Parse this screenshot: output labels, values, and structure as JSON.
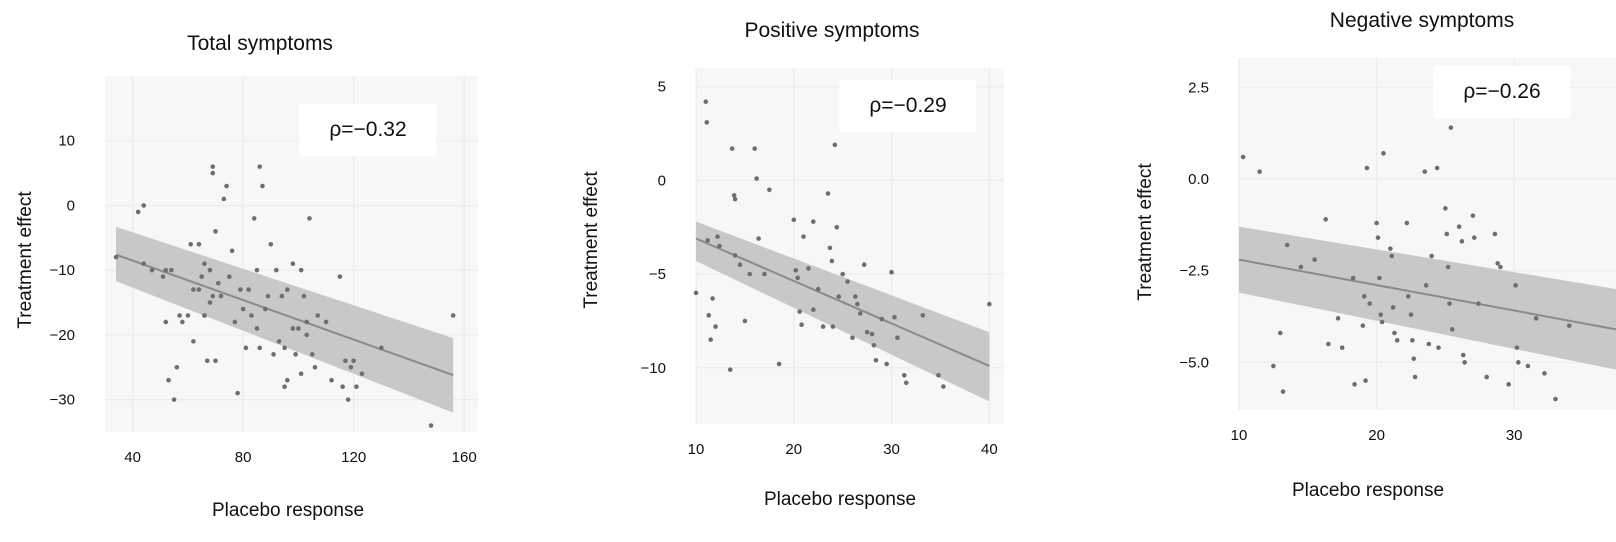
{
  "colors": {
    "band": "#c8c8c8",
    "line": "#8a8a8a",
    "point": "#6e6e6e",
    "grid": "#ececec",
    "plot_bg": "#f7f7f7"
  },
  "chart_data": [
    {
      "type": "scatter",
      "title": "Total symptoms",
      "xlabel": "Placebo response",
      "ylabel": "Treatment effect",
      "annotation": "ρ=−0.32",
      "xlim": [
        30,
        165
      ],
      "ylim": [
        -35,
        20
      ],
      "xticks": [
        40,
        80,
        120,
        160
      ],
      "xtick_labels": [
        "40",
        "80",
        "120",
        "160"
      ],
      "yticks": [
        10,
        0,
        -10,
        -20,
        -30
      ],
      "ytick_labels": [
        "10",
        "0",
        "−10",
        "−20",
        "−30"
      ],
      "grid": true,
      "trend": {
        "x": [
          34,
          156
        ],
        "y": [
          -7.6,
          -26.2
        ]
      },
      "band": {
        "x": [
          34,
          156
        ],
        "upper": [
          -3.3,
          -20.5
        ],
        "lower": [
          -11.7,
          -32.0
        ]
      },
      "points": [
        [
          34,
          -8
        ],
        [
          42,
          -1
        ],
        [
          44,
          0
        ],
        [
          44,
          -9
        ],
        [
          47,
          -10
        ],
        [
          51,
          -11
        ],
        [
          52,
          -10
        ],
        [
          52,
          -18
        ],
        [
          53,
          -27
        ],
        [
          54,
          -10
        ],
        [
          55,
          -30
        ],
        [
          56,
          -25
        ],
        [
          57,
          -17
        ],
        [
          58,
          -18
        ],
        [
          60,
          -17
        ],
        [
          61,
          -6
        ],
        [
          62,
          -21
        ],
        [
          62,
          -13
        ],
        [
          64,
          -13
        ],
        [
          64,
          -6
        ],
        [
          65,
          -11
        ],
        [
          66,
          -17
        ],
        [
          66,
          -9
        ],
        [
          66,
          -17
        ],
        [
          67,
          -24
        ],
        [
          68,
          -10
        ],
        [
          68,
          -15
        ],
        [
          69,
          6
        ],
        [
          69,
          5
        ],
        [
          69,
          -14
        ],
        [
          70,
          -24
        ],
        [
          70,
          -4
        ],
        [
          71,
          -12
        ],
        [
          72,
          -14
        ],
        [
          73,
          1
        ],
        [
          74,
          3
        ],
        [
          75,
          -11
        ],
        [
          76,
          -7
        ],
        [
          77,
          -18
        ],
        [
          78,
          -29
        ],
        [
          79,
          -13
        ],
        [
          80,
          -16
        ],
        [
          81,
          -22
        ],
        [
          82,
          -13
        ],
        [
          83,
          -17
        ],
        [
          84,
          -2
        ],
        [
          85,
          -19
        ],
        [
          85,
          -10
        ],
        [
          86,
          6
        ],
        [
          86,
          -22
        ],
        [
          87,
          3
        ],
        [
          88,
          -16
        ],
        [
          89,
          -14
        ],
        [
          90,
          -6
        ],
        [
          91,
          -23
        ],
        [
          92,
          -10
        ],
        [
          93,
          -21
        ],
        [
          94,
          -14
        ],
        [
          95,
          -22
        ],
        [
          95,
          -28
        ],
        [
          96,
          -27
        ],
        [
          96,
          -13
        ],
        [
          98,
          -9
        ],
        [
          98,
          -19
        ],
        [
          99,
          -23
        ],
        [
          100,
          -19
        ],
        [
          101,
          -10
        ],
        [
          101,
          -26
        ],
        [
          102,
          -14
        ],
        [
          103,
          -20
        ],
        [
          103,
          -18
        ],
        [
          104,
          -2
        ],
        [
          105,
          -23
        ],
        [
          106,
          -25
        ],
        [
          107,
          -17
        ],
        [
          110,
          -18
        ],
        [
          112,
          -27
        ],
        [
          115,
          -11
        ],
        [
          116,
          -28
        ],
        [
          117,
          -24
        ],
        [
          118,
          -30
        ],
        [
          119,
          -25
        ],
        [
          120,
          -24
        ],
        [
          121,
          -28
        ],
        [
          123,
          -26
        ],
        [
          130,
          -22
        ],
        [
          148,
          -34
        ],
        [
          156,
          -17
        ]
      ]
    },
    {
      "type": "scatter",
      "title": "Positive symptoms",
      "xlabel": "Placebo response",
      "ylabel": "Treatment effect",
      "annotation": "ρ=−0.29",
      "xlim": [
        10,
        41.5
      ],
      "ylim": [
        -13,
        6
      ],
      "xticks": [
        10,
        20,
        30,
        40
      ],
      "xtick_labels": [
        "10",
        "20",
        "30",
        "40"
      ],
      "yticks": [
        5,
        0,
        -5,
        -10
      ],
      "ytick_labels": [
        "5",
        "0",
        "−5",
        "−10"
      ],
      "grid": true,
      "trend": {
        "x": [
          10,
          40
        ],
        "y": [
          -3.1,
          -9.9
        ]
      },
      "band": {
        "x": [
          10,
          40
        ],
        "upper": [
          -2.2,
          -8.1
        ],
        "lower": [
          -4.3,
          -11.8
        ]
      },
      "points": [
        [
          10,
          -6
        ],
        [
          11,
          4.2
        ],
        [
          11.1,
          3.1
        ],
        [
          11.2,
          -3.2
        ],
        [
          11.3,
          -7.2
        ],
        [
          11.5,
          -8.5
        ],
        [
          11.7,
          -6.3
        ],
        [
          12,
          -7.8
        ],
        [
          12.2,
          -3
        ],
        [
          12.4,
          -3.5
        ],
        [
          13.5,
          -10.1
        ],
        [
          13.7,
          1.7
        ],
        [
          13.9,
          -0.8
        ],
        [
          14,
          -1
        ],
        [
          14,
          -4
        ],
        [
          14.5,
          -4.5
        ],
        [
          15,
          -7.5
        ],
        [
          15.5,
          -5
        ],
        [
          16,
          1.7
        ],
        [
          16.2,
          0.1
        ],
        [
          16.4,
          -3.1
        ],
        [
          17,
          -5
        ],
        [
          17.5,
          -0.5
        ],
        [
          18.5,
          -9.8
        ],
        [
          20,
          -2.1
        ],
        [
          20.2,
          -4.8
        ],
        [
          20.4,
          -5.2
        ],
        [
          20.6,
          -7
        ],
        [
          20.8,
          -7.7
        ],
        [
          21,
          -3
        ],
        [
          21.5,
          -4.7
        ],
        [
          22,
          -2.2
        ],
        [
          22,
          -6.9
        ],
        [
          22.5,
          -5.8
        ],
        [
          23,
          -7.8
        ],
        [
          23.5,
          -0.7
        ],
        [
          23.7,
          -3.6
        ],
        [
          23.9,
          -4.3
        ],
        [
          24,
          -7.8
        ],
        [
          24.2,
          1.9
        ],
        [
          24.4,
          -2.5
        ],
        [
          24.6,
          -6.2
        ],
        [
          25,
          -5
        ],
        [
          25.5,
          -5.4
        ],
        [
          26,
          -8.4
        ],
        [
          26.3,
          -6.2
        ],
        [
          26.5,
          -6.6
        ],
        [
          26.8,
          -7.1
        ],
        [
          27.2,
          -4.5
        ],
        [
          27.5,
          -8.1
        ],
        [
          28,
          -8.2
        ],
        [
          28.2,
          -8.8
        ],
        [
          28.4,
          -9.6
        ],
        [
          29,
          -7.4
        ],
        [
          29.5,
          -9.8
        ],
        [
          30,
          -4.9
        ],
        [
          30.3,
          -7.3
        ],
        [
          30.6,
          -8.4
        ],
        [
          31.3,
          -10.4
        ],
        [
          31.5,
          -10.8
        ],
        [
          33.2,
          -7.2
        ],
        [
          34.8,
          -10.4
        ],
        [
          35.3,
          -11
        ],
        [
          40,
          -6.6
        ]
      ]
    },
    {
      "type": "scatter",
      "title": "Negative symptoms",
      "xlabel": "Placebo response",
      "ylabel": "Treatment effect",
      "annotation": "ρ=−0.26",
      "xlim": [
        10,
        37.4
      ],
      "ylim": [
        -6.3,
        3.3
      ],
      "xticks": [
        10,
        20,
        30
      ],
      "xtick_labels": [
        "10",
        "20",
        "30"
      ],
      "yticks": [
        2.5,
        0,
        -2.5,
        -5
      ],
      "ytick_labels": [
        "2.5",
        "0.0",
        "−2.5",
        "−5.0"
      ],
      "grid": true,
      "trend": {
        "x": [
          10,
          37.4
        ],
        "y": [
          -2.2,
          -4.1
        ]
      },
      "band": {
        "x": [
          10,
          37.4
        ],
        "upper": [
          -1.3,
          -3.0
        ],
        "lower": [
          -3.1,
          -5.2
        ]
      },
      "points": [
        [
          10.3,
          0.6
        ],
        [
          11.5,
          0.2
        ],
        [
          12.5,
          -5.1
        ],
        [
          13,
          -4.2
        ],
        [
          13.2,
          -5.8
        ],
        [
          13.5,
          -1.8
        ],
        [
          14.5,
          -2.4
        ],
        [
          15.5,
          -2.2
        ],
        [
          16.3,
          -1.1
        ],
        [
          16.5,
          -4.5
        ],
        [
          17.2,
          -3.8
        ],
        [
          17.5,
          -4.6
        ],
        [
          18.3,
          -2.7
        ],
        [
          18.4,
          -5.6
        ],
        [
          19,
          -4
        ],
        [
          19.1,
          -3.2
        ],
        [
          19.2,
          -5.5
        ],
        [
          19.3,
          0.3
        ],
        [
          19.5,
          -3.4
        ],
        [
          20,
          -1.2
        ],
        [
          20.1,
          -1.6
        ],
        [
          20.2,
          -2.7
        ],
        [
          20.3,
          -3.7
        ],
        [
          20.4,
          -3.9
        ],
        [
          20.5,
          0.7
        ],
        [
          21,
          -1.9
        ],
        [
          21.1,
          -2.1
        ],
        [
          21.2,
          -3.5
        ],
        [
          21.3,
          -4.2
        ],
        [
          21.5,
          -4.4
        ],
        [
          22.2,
          -1.2
        ],
        [
          22.3,
          -3.2
        ],
        [
          22.5,
          -3.7
        ],
        [
          22.6,
          -4.4
        ],
        [
          22.7,
          -4.9
        ],
        [
          22.8,
          -5.4
        ],
        [
          23.5,
          0.2
        ],
        [
          23.6,
          -2.9
        ],
        [
          23.8,
          -4.5
        ],
        [
          24,
          -2.1
        ],
        [
          24.4,
          0.3
        ],
        [
          24.5,
          -4.6
        ],
        [
          25,
          -0.8
        ],
        [
          25.1,
          -1.5
        ],
        [
          25.2,
          -2.4
        ],
        [
          25.3,
          -3.4
        ],
        [
          25.4,
          1.4
        ],
        [
          25.5,
          -4.1
        ],
        [
          26,
          -1.3
        ],
        [
          26.2,
          -1.7
        ],
        [
          26.3,
          -4.8
        ],
        [
          26.4,
          -5
        ],
        [
          27,
          -1
        ],
        [
          27.1,
          -1.6
        ],
        [
          27.4,
          -3.4
        ],
        [
          28,
          -5.4
        ],
        [
          28.6,
          -1.5
        ],
        [
          28.8,
          -2.3
        ],
        [
          29,
          -2.4
        ],
        [
          29.6,
          -5.6
        ],
        [
          30.1,
          -2.9
        ],
        [
          30.2,
          -4.6
        ],
        [
          30.3,
          -5
        ],
        [
          31,
          -5.1
        ],
        [
          31.6,
          -3.8
        ],
        [
          32.2,
          -5.3
        ],
        [
          33,
          -6
        ],
        [
          34,
          -4
        ]
      ]
    }
  ]
}
